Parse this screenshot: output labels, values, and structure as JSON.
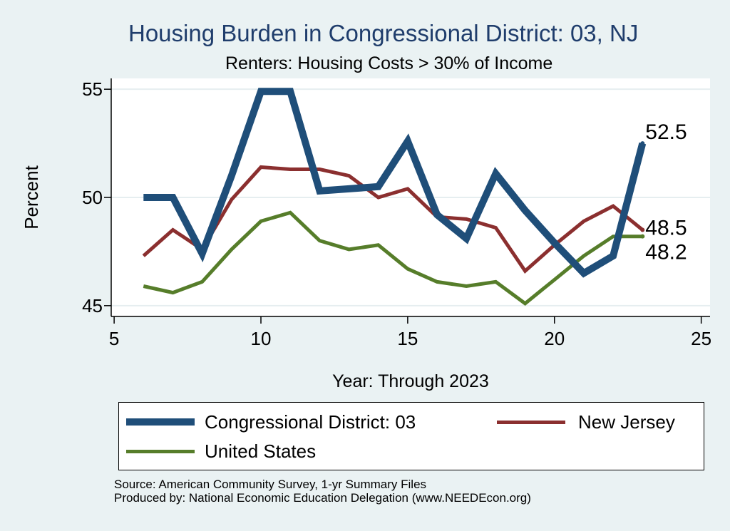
{
  "chart_data": {
    "type": "line",
    "title": "Housing Burden in Congressional District:  03, NJ",
    "subtitle": "Renters: Housing Costs > 30% of Income",
    "xlabel": "Year: Through 2023",
    "ylabel": "Percent",
    "xlim": [
      4.9,
      25.3
    ],
    "ylim": [
      44.5,
      55.5
    ],
    "xticks": [
      5,
      10,
      15,
      20,
      25
    ],
    "yticks": [
      45,
      50,
      55
    ],
    "grid": true,
    "legend_position": "bottom",
    "x": [
      6,
      7,
      8,
      9,
      10,
      11,
      12,
      13,
      14,
      15,
      16,
      17,
      18,
      19,
      20,
      21,
      22,
      23
    ],
    "series": [
      {
        "name": "Congressional District:  03",
        "color": "#1f4e79",
        "values": [
          50.0,
          50.0,
          47.4,
          51.0,
          54.9,
          54.9,
          50.3,
          50.4,
          50.5,
          52.6,
          49.2,
          48.1,
          51.1,
          49.4,
          47.9,
          46.5,
          47.3,
          52.5
        ],
        "end_label": "52.5"
      },
      {
        "name": "New Jersey",
        "color": "#8b2f2f",
        "values": [
          47.3,
          48.5,
          47.6,
          49.9,
          51.4,
          51.3,
          51.3,
          51.0,
          50.0,
          50.4,
          49.1,
          49.0,
          48.6,
          46.6,
          47.8,
          48.9,
          49.6,
          48.5
        ],
        "end_label": "48.5"
      },
      {
        "name": "United States",
        "color": "#567d2a",
        "values": [
          45.9,
          45.6,
          46.1,
          47.6,
          48.9,
          49.3,
          48.0,
          47.6,
          47.8,
          46.7,
          46.1,
          45.9,
          46.1,
          45.1,
          46.2,
          47.3,
          48.2,
          48.2
        ],
        "end_label": "48.2"
      }
    ]
  },
  "source_lines": [
    "Source: American Community Survey, 1-yr Summary Files",
    "Produced by: National Economic Education Delegation (www.NEEDEcon.org)"
  ]
}
